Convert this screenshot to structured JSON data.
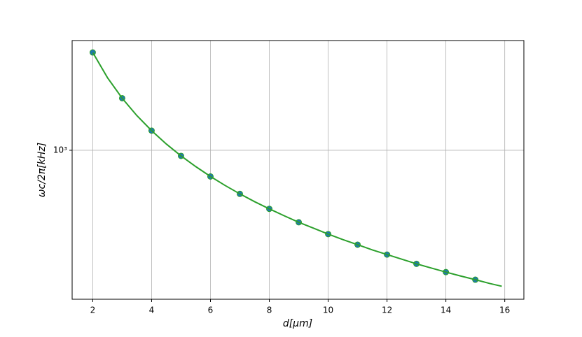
{
  "chart_data": {
    "type": "line",
    "xlabel": "d[μm]",
    "ylabel": "ωc/2π[kHz]",
    "xlim": [
      1.3,
      16.65
    ],
    "xticks": [
      2,
      4,
      6,
      8,
      10,
      12,
      14,
      16
    ],
    "ylim": [
      138,
      4300
    ],
    "yticks": [
      {
        "value": 1000,
        "label": "10³"
      }
    ],
    "log_y": true,
    "grid": true,
    "series": [
      {
        "type": "scatter",
        "color": "#1f77b4",
        "edge": "#2ca02c",
        "x": [
          2,
          3,
          4,
          5,
          6,
          7,
          8,
          9,
          10,
          11,
          12,
          13,
          14,
          15
        ],
        "values": [
          3670,
          1998,
          1298,
          928,
          706,
          560,
          459,
          384,
          328,
          285,
          250,
          221,
          198,
          179
        ]
      },
      {
        "type": "line",
        "color": "#2ca02c",
        "x": [
          2,
          2.5,
          3,
          3.5,
          4,
          4.5,
          5,
          5.5,
          6,
          6.5,
          7,
          7.5,
          8,
          8.5,
          9,
          9.5,
          10,
          10.5,
          11,
          11.5,
          12,
          12.5,
          13,
          13.5,
          14,
          14.5,
          15,
          15.5,
          15.9
        ],
        "values": [
          3670,
          2626,
          1998,
          1585,
          1298,
          1087,
          928,
          805,
          706,
          626,
          560,
          505,
          459,
          419,
          384,
          355,
          328,
          305,
          285,
          266,
          250,
          235,
          221,
          209,
          198,
          188,
          179,
          170,
          164
        ]
      }
    ]
  }
}
